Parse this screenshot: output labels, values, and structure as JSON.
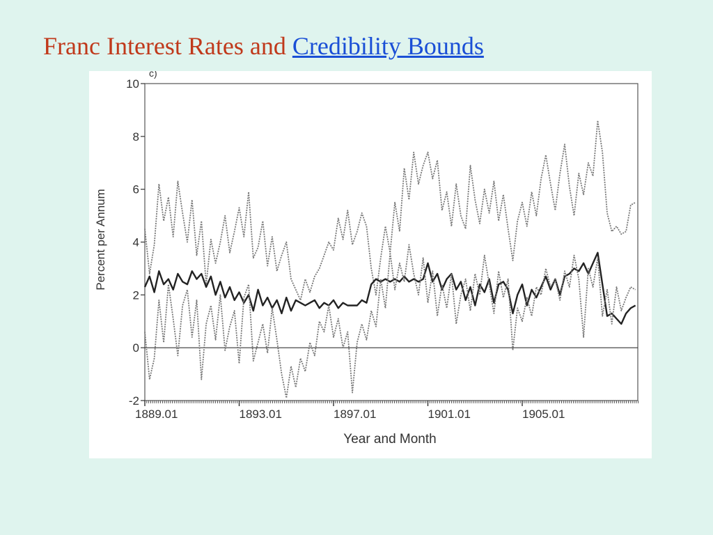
{
  "slide": {
    "title_main": "Franc Interest Rates and ",
    "title_link": "Credibility Bounds",
    "colors": {
      "title": "#c0391b",
      "link": "#1a4fd6",
      "background": "#dff4ee"
    }
  },
  "chart_data": {
    "type": "line",
    "corner_label": "c)",
    "xlabel": "Year and Month",
    "ylabel": "Percent per Annum",
    "xlim": [
      1889.0,
      1909.9
    ],
    "ylim": [
      -2,
      10
    ],
    "yticks": [
      -2,
      0,
      2,
      4,
      6,
      8,
      10
    ],
    "xtick_values": [
      1889.0,
      1893.0,
      1897.0,
      1901.0,
      1905.0
    ],
    "xtick_labels": [
      "1889.01",
      "1893.01",
      "1897.01",
      "1901.01",
      "1905.01"
    ],
    "grid": false,
    "series": [
      {
        "style": "dotted-upper",
        "color": "#777777",
        "x": [
          1889.0,
          1889.2,
          1889.4,
          1889.6,
          1889.8,
          1890.0,
          1890.2,
          1890.4,
          1890.6,
          1890.8,
          1891.0,
          1891.2,
          1891.4,
          1891.6,
          1891.8,
          1892.0,
          1892.2,
          1892.4,
          1892.6,
          1892.8,
          1893.0,
          1893.2,
          1893.4,
          1893.6,
          1893.8,
          1894.0,
          1894.2,
          1894.4,
          1894.6,
          1894.8,
          1895.0,
          1895.2,
          1895.4,
          1895.6,
          1895.8,
          1896.0,
          1896.2,
          1896.4,
          1896.6,
          1896.8,
          1897.0,
          1897.2,
          1897.4,
          1897.6,
          1897.8,
          1898.0,
          1898.2,
          1898.4,
          1898.6,
          1898.8,
          1899.0,
          1899.2,
          1899.4,
          1899.6,
          1899.8,
          1900.0,
          1900.2,
          1900.4,
          1900.6,
          1900.8,
          1901.0,
          1901.2,
          1901.4,
          1901.6,
          1901.8,
          1902.0,
          1902.2,
          1902.4,
          1902.6,
          1902.8,
          1903.0,
          1903.2,
          1903.4,
          1903.6,
          1903.8,
          1904.0,
          1904.2,
          1904.4,
          1904.6,
          1904.8,
          1905.0,
          1905.2,
          1905.4,
          1905.6,
          1905.8,
          1906.0,
          1906.2,
          1906.4,
          1906.6,
          1906.8,
          1907.0,
          1907.2,
          1907.4,
          1907.6,
          1907.8,
          1908.0,
          1908.2,
          1908.4,
          1908.6,
          1908.8,
          1909.0,
          1909.2,
          1909.4,
          1909.6,
          1909.8
        ],
        "values": [
          4.5,
          2.8,
          3.9,
          6.2,
          4.8,
          5.7,
          4.2,
          6.3,
          5.1,
          4.0,
          5.6,
          3.5,
          4.8,
          2.4,
          4.1,
          3.2,
          4.0,
          5.0,
          3.6,
          4.4,
          5.3,
          4.2,
          5.9,
          3.4,
          3.8,
          4.8,
          3.1,
          4.2,
          2.9,
          3.5,
          4.0,
          2.6,
          2.2,
          1.8,
          2.6,
          2.1,
          2.7,
          3.0,
          3.5,
          4.0,
          3.7,
          4.9,
          4.1,
          5.2,
          3.9,
          4.4,
          5.1,
          4.6,
          3.0,
          2.0,
          3.4,
          4.6,
          3.6,
          5.5,
          4.4,
          6.8,
          5.6,
          7.4,
          6.2,
          6.9,
          7.4,
          6.4,
          7.1,
          5.2,
          5.9,
          4.6,
          6.2,
          5.0,
          4.5,
          6.9,
          5.6,
          4.7,
          6.0,
          5.1,
          6.3,
          4.8,
          5.8,
          4.5,
          3.3,
          4.8,
          5.5,
          4.6,
          5.9,
          5.0,
          6.4,
          7.3,
          6.2,
          5.2,
          6.6,
          7.7,
          6.1,
          5.0,
          6.6,
          5.8,
          7.0,
          6.5,
          8.6,
          7.4,
          5.1,
          4.4,
          4.6,
          4.3,
          4.4,
          5.4,
          5.5
        ]
      },
      {
        "style": "solid-middle",
        "color": "#222222",
        "x": [
          1889.0,
          1889.2,
          1889.4,
          1889.6,
          1889.8,
          1890.0,
          1890.2,
          1890.4,
          1890.6,
          1890.8,
          1891.0,
          1891.2,
          1891.4,
          1891.6,
          1891.8,
          1892.0,
          1892.2,
          1892.4,
          1892.6,
          1892.8,
          1893.0,
          1893.2,
          1893.4,
          1893.6,
          1893.8,
          1894.0,
          1894.2,
          1894.4,
          1894.6,
          1894.8,
          1895.0,
          1895.2,
          1895.4,
          1895.6,
          1895.8,
          1896.0,
          1896.2,
          1896.4,
          1896.6,
          1896.8,
          1897.0,
          1897.2,
          1897.4,
          1897.6,
          1897.8,
          1898.0,
          1898.2,
          1898.4,
          1898.6,
          1898.8,
          1899.0,
          1899.2,
          1899.4,
          1899.6,
          1899.8,
          1900.0,
          1900.2,
          1900.4,
          1900.6,
          1900.8,
          1901.0,
          1901.2,
          1901.4,
          1901.6,
          1901.8,
          1902.0,
          1902.2,
          1902.4,
          1902.6,
          1902.8,
          1903.0,
          1903.2,
          1903.4,
          1903.6,
          1903.8,
          1904.0,
          1904.2,
          1904.4,
          1904.6,
          1904.8,
          1905.0,
          1905.2,
          1905.4,
          1905.6,
          1905.8,
          1906.0,
          1906.2,
          1906.4,
          1906.6,
          1906.8,
          1907.0,
          1907.2,
          1907.4,
          1907.6,
          1907.8,
          1908.0,
          1908.2,
          1908.4,
          1908.6,
          1908.8,
          1909.0,
          1909.2,
          1909.4,
          1909.6,
          1909.8
        ],
        "values": [
          2.3,
          2.7,
          2.1,
          2.9,
          2.4,
          2.6,
          2.2,
          2.8,
          2.5,
          2.4,
          2.9,
          2.6,
          2.8,
          2.3,
          2.7,
          2.0,
          2.5,
          1.9,
          2.3,
          1.8,
          2.1,
          1.7,
          2.0,
          1.4,
          2.2,
          1.6,
          1.9,
          1.5,
          1.8,
          1.3,
          1.9,
          1.4,
          1.8,
          1.7,
          1.6,
          1.7,
          1.8,
          1.5,
          1.7,
          1.6,
          1.8,
          1.5,
          1.7,
          1.6,
          1.6,
          1.6,
          1.8,
          1.7,
          2.4,
          2.6,
          2.5,
          2.6,
          2.5,
          2.6,
          2.5,
          2.7,
          2.5,
          2.6,
          2.5,
          2.6,
          3.2,
          2.5,
          2.8,
          2.2,
          2.6,
          2.8,
          2.2,
          2.5,
          1.8,
          2.3,
          1.6,
          2.4,
          2.1,
          2.6,
          1.7,
          2.4,
          2.5,
          2.2,
          1.3,
          2.0,
          2.4,
          1.6,
          2.2,
          1.9,
          2.3,
          2.7,
          2.2,
          2.6,
          2.0,
          2.7,
          2.8,
          3.0,
          2.9,
          3.2,
          2.8,
          3.2,
          3.6,
          2.4,
          1.2,
          1.3,
          1.1,
          0.9,
          1.3,
          1.5,
          1.6
        ]
      },
      {
        "style": "dotted-lower",
        "color": "#777777",
        "x": [
          1889.0,
          1889.2,
          1889.4,
          1889.6,
          1889.8,
          1890.0,
          1890.2,
          1890.4,
          1890.6,
          1890.8,
          1891.0,
          1891.2,
          1891.4,
          1891.6,
          1891.8,
          1892.0,
          1892.2,
          1892.4,
          1892.6,
          1892.8,
          1893.0,
          1893.2,
          1893.4,
          1893.6,
          1893.8,
          1894.0,
          1894.2,
          1894.4,
          1894.6,
          1894.8,
          1895.0,
          1895.2,
          1895.4,
          1895.6,
          1895.8,
          1896.0,
          1896.2,
          1896.4,
          1896.6,
          1896.8,
          1897.0,
          1897.2,
          1897.4,
          1897.6,
          1897.8,
          1898.0,
          1898.2,
          1898.4,
          1898.6,
          1898.8,
          1899.0,
          1899.2,
          1899.4,
          1899.6,
          1899.8,
          1900.0,
          1900.2,
          1900.4,
          1900.6,
          1900.8,
          1901.0,
          1901.2,
          1901.4,
          1901.6,
          1901.8,
          1902.0,
          1902.2,
          1902.4,
          1902.6,
          1902.8,
          1903.0,
          1903.2,
          1903.4,
          1903.6,
          1903.8,
          1904.0,
          1904.2,
          1904.4,
          1904.6,
          1904.8,
          1905.0,
          1905.2,
          1905.4,
          1905.6,
          1905.8,
          1906.0,
          1906.2,
          1906.4,
          1906.6,
          1906.8,
          1907.0,
          1907.2,
          1907.4,
          1907.6,
          1907.8,
          1908.0,
          1908.2,
          1908.4,
          1908.6,
          1908.8,
          1909.0,
          1909.2,
          1909.4,
          1909.6,
          1909.8
        ],
        "values": [
          0.6,
          -1.2,
          -0.4,
          1.8,
          0.2,
          2.4,
          1.1,
          -0.3,
          1.6,
          2.2,
          0.4,
          1.8,
          -1.2,
          0.9,
          1.6,
          0.3,
          2.0,
          -0.1,
          0.8,
          1.4,
          -0.6,
          1.9,
          2.4,
          -0.5,
          0.2,
          0.9,
          -0.2,
          1.5,
          0.3,
          -1.0,
          -1.9,
          -0.7,
          -1.5,
          -0.4,
          -0.9,
          0.2,
          -0.3,
          1.0,
          0.6,
          1.6,
          0.4,
          1.1,
          0.0,
          0.6,
          -1.7,
          0.2,
          0.9,
          0.3,
          1.4,
          0.8,
          2.6,
          1.5,
          3.6,
          2.2,
          3.2,
          2.5,
          3.9,
          2.8,
          2.0,
          3.4,
          1.7,
          2.9,
          1.2,
          2.4,
          1.5,
          2.8,
          0.9,
          2.0,
          2.6,
          1.4,
          2.8,
          2.0,
          3.5,
          2.4,
          1.3,
          2.9,
          1.9,
          2.6,
          -0.1,
          1.5,
          1.0,
          1.9,
          1.2,
          2.3,
          2.0,
          3.0,
          2.3,
          2.6,
          1.8,
          2.9,
          2.3,
          3.5,
          2.6,
          0.4,
          3.0,
          2.3,
          3.4,
          1.2,
          2.2,
          0.9,
          2.3,
          1.4,
          1.9,
          2.3,
          2.2
        ]
      }
    ]
  }
}
